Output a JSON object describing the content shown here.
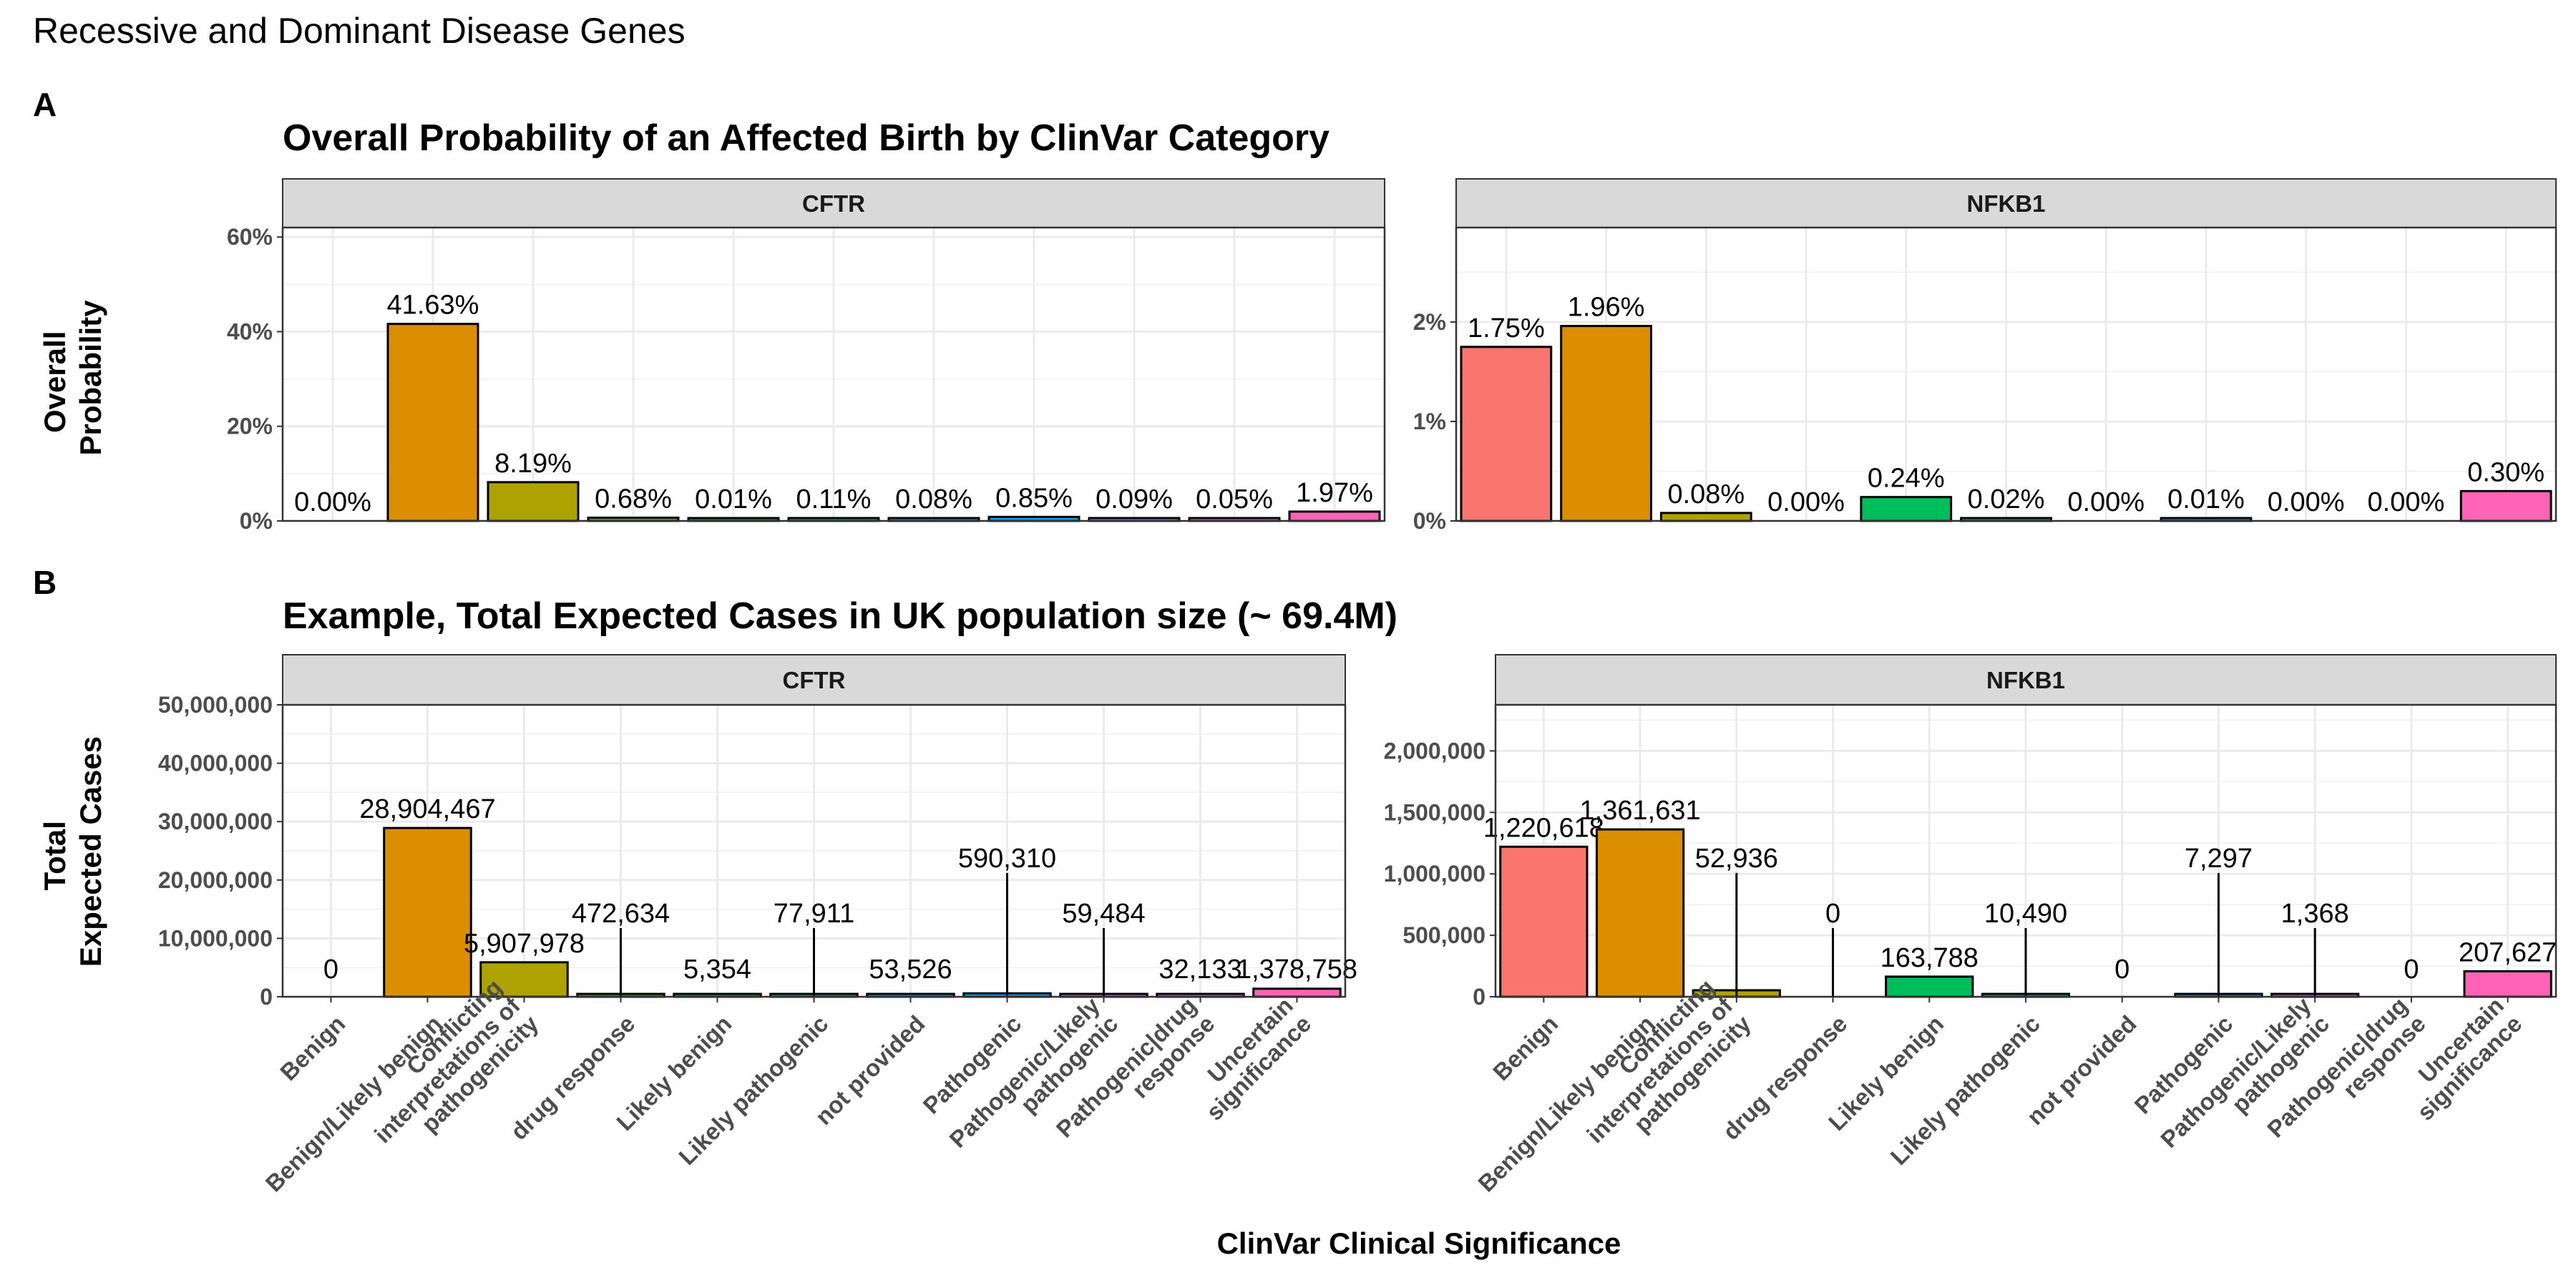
{
  "figure": {
    "title": "Recessive and Dominant Disease Genes",
    "tag_a": "A",
    "tag_b": "B",
    "x_axis_label": "ClinVar Clinical Significance"
  },
  "chart_data": [
    {
      "type": "bar",
      "panel": "A",
      "title": "Overall Probability of an Affected Birth by ClinVar Category",
      "ylabel": "Overall Probability",
      "xlabel": "ClinVar Clinical Significance",
      "categories": [
        "Benign",
        "Benign/Likely benign",
        "Conflicting interpretations of pathogenicity",
        "drug response",
        "Likely benign",
        "Likely pathogenic",
        "not provided",
        "Pathogenic",
        "Pathogenic/Likely pathogenic",
        "Pathogenic|drug response",
        "Uncertain significance"
      ],
      "category_colors": [
        "#F8766D",
        "#DB8E00",
        "#AEA200",
        "#64B200",
        "#00BD5C",
        "#00C1A7",
        "#00BADE",
        "#00A6FF",
        "#B385FF",
        "#EF67EB",
        "#FF63B6"
      ],
      "facets": [
        {
          "name": "CFTR",
          "values": [
            0.0,
            41.63,
            8.19,
            0.68,
            0.01,
            0.11,
            0.08,
            0.85,
            0.09,
            0.05,
            1.97
          ],
          "labels": [
            "0.00%",
            "41.63%",
            "8.19%",
            "0.68%",
            "0.01%",
            "0.11%",
            "0.08%",
            "0.85%",
            "0.09%",
            "0.05%",
            "1.97%"
          ],
          "ylim": [
            0,
            62
          ],
          "yticks": [
            0,
            20,
            40,
            60
          ],
          "ytick_labels": [
            "0%",
            "20%",
            "40%",
            "60%"
          ]
        },
        {
          "name": "NFKB1",
          "values": [
            1.75,
            1.96,
            0.08,
            0.0,
            0.24,
            0.02,
            0.0,
            0.01,
            0.0,
            0.0,
            0.3
          ],
          "labels": [
            "1.75%",
            "1.96%",
            "0.08%",
            "0.00%",
            "0.24%",
            "0.02%",
            "0.00%",
            "0.01%",
            "0.00%",
            "0.00%",
            "0.30%"
          ],
          "ylim": [
            0,
            2.95
          ],
          "yticks": [
            0,
            1,
            2
          ],
          "ytick_labels": [
            "0%",
            "1%",
            "2%"
          ]
        }
      ]
    },
    {
      "type": "bar",
      "panel": "B",
      "title": "Example, Total Expected Cases in UK population size (~ 69.4M)",
      "ylabel": "Total Expected Cases",
      "xlabel": "ClinVar Clinical Significance",
      "categories": [
        "Benign",
        "Benign/Likely benign",
        "Conflicting interpretations of pathogenicity",
        "drug response",
        "Likely benign",
        "Likely pathogenic",
        "not provided",
        "Pathogenic",
        "Pathogenic/Likely pathogenic",
        "Pathogenic|drug response",
        "Uncertain significance"
      ],
      "category_colors": [
        "#F8766D",
        "#DB8E00",
        "#AEA200",
        "#64B200",
        "#00BD5C",
        "#00C1A7",
        "#00BADE",
        "#00A6FF",
        "#B385FF",
        "#EF67EB",
        "#FF63B6"
      ],
      "facets": [
        {
          "name": "CFTR",
          "values": [
            0,
            28904467,
            5907978,
            472634,
            5354,
            77911,
            53526,
            590310,
            59484,
            32133,
            1378758
          ],
          "labels": [
            "0",
            "28,904,467",
            "5,907,978",
            "472,634",
            "5,354",
            "77,911",
            "53,526",
            "590,310",
            "59,484",
            "32,133",
            "1,378,758"
          ],
          "ylim": [
            0,
            50000000
          ],
          "yticks": [
            0,
            10000000,
            20000000,
            30000000,
            40000000,
            50000000
          ],
          "ytick_labels": [
            "0",
            "10,000,000",
            "20,000,000",
            "30,000,000",
            "40,000,000",
            "50,000,000"
          ]
        },
        {
          "name": "NFKB1",
          "values": [
            1220618,
            1361631,
            52936,
            0,
            163788,
            10490,
            0,
            7297,
            1368,
            0,
            207627
          ],
          "labels": [
            "1,220,618",
            "1,361,631",
            "52,936",
            "0",
            "163,788",
            "10,490",
            "0",
            "7,297",
            "1,368",
            "0",
            "207,627"
          ],
          "ylim": [
            0,
            2375000
          ],
          "yticks": [
            0,
            500000,
            1000000,
            1500000,
            2000000
          ],
          "ytick_labels": [
            "0",
            "500,000",
            "1,000,000",
            "1,500,000",
            "2,000,000"
          ]
        }
      ]
    }
  ]
}
